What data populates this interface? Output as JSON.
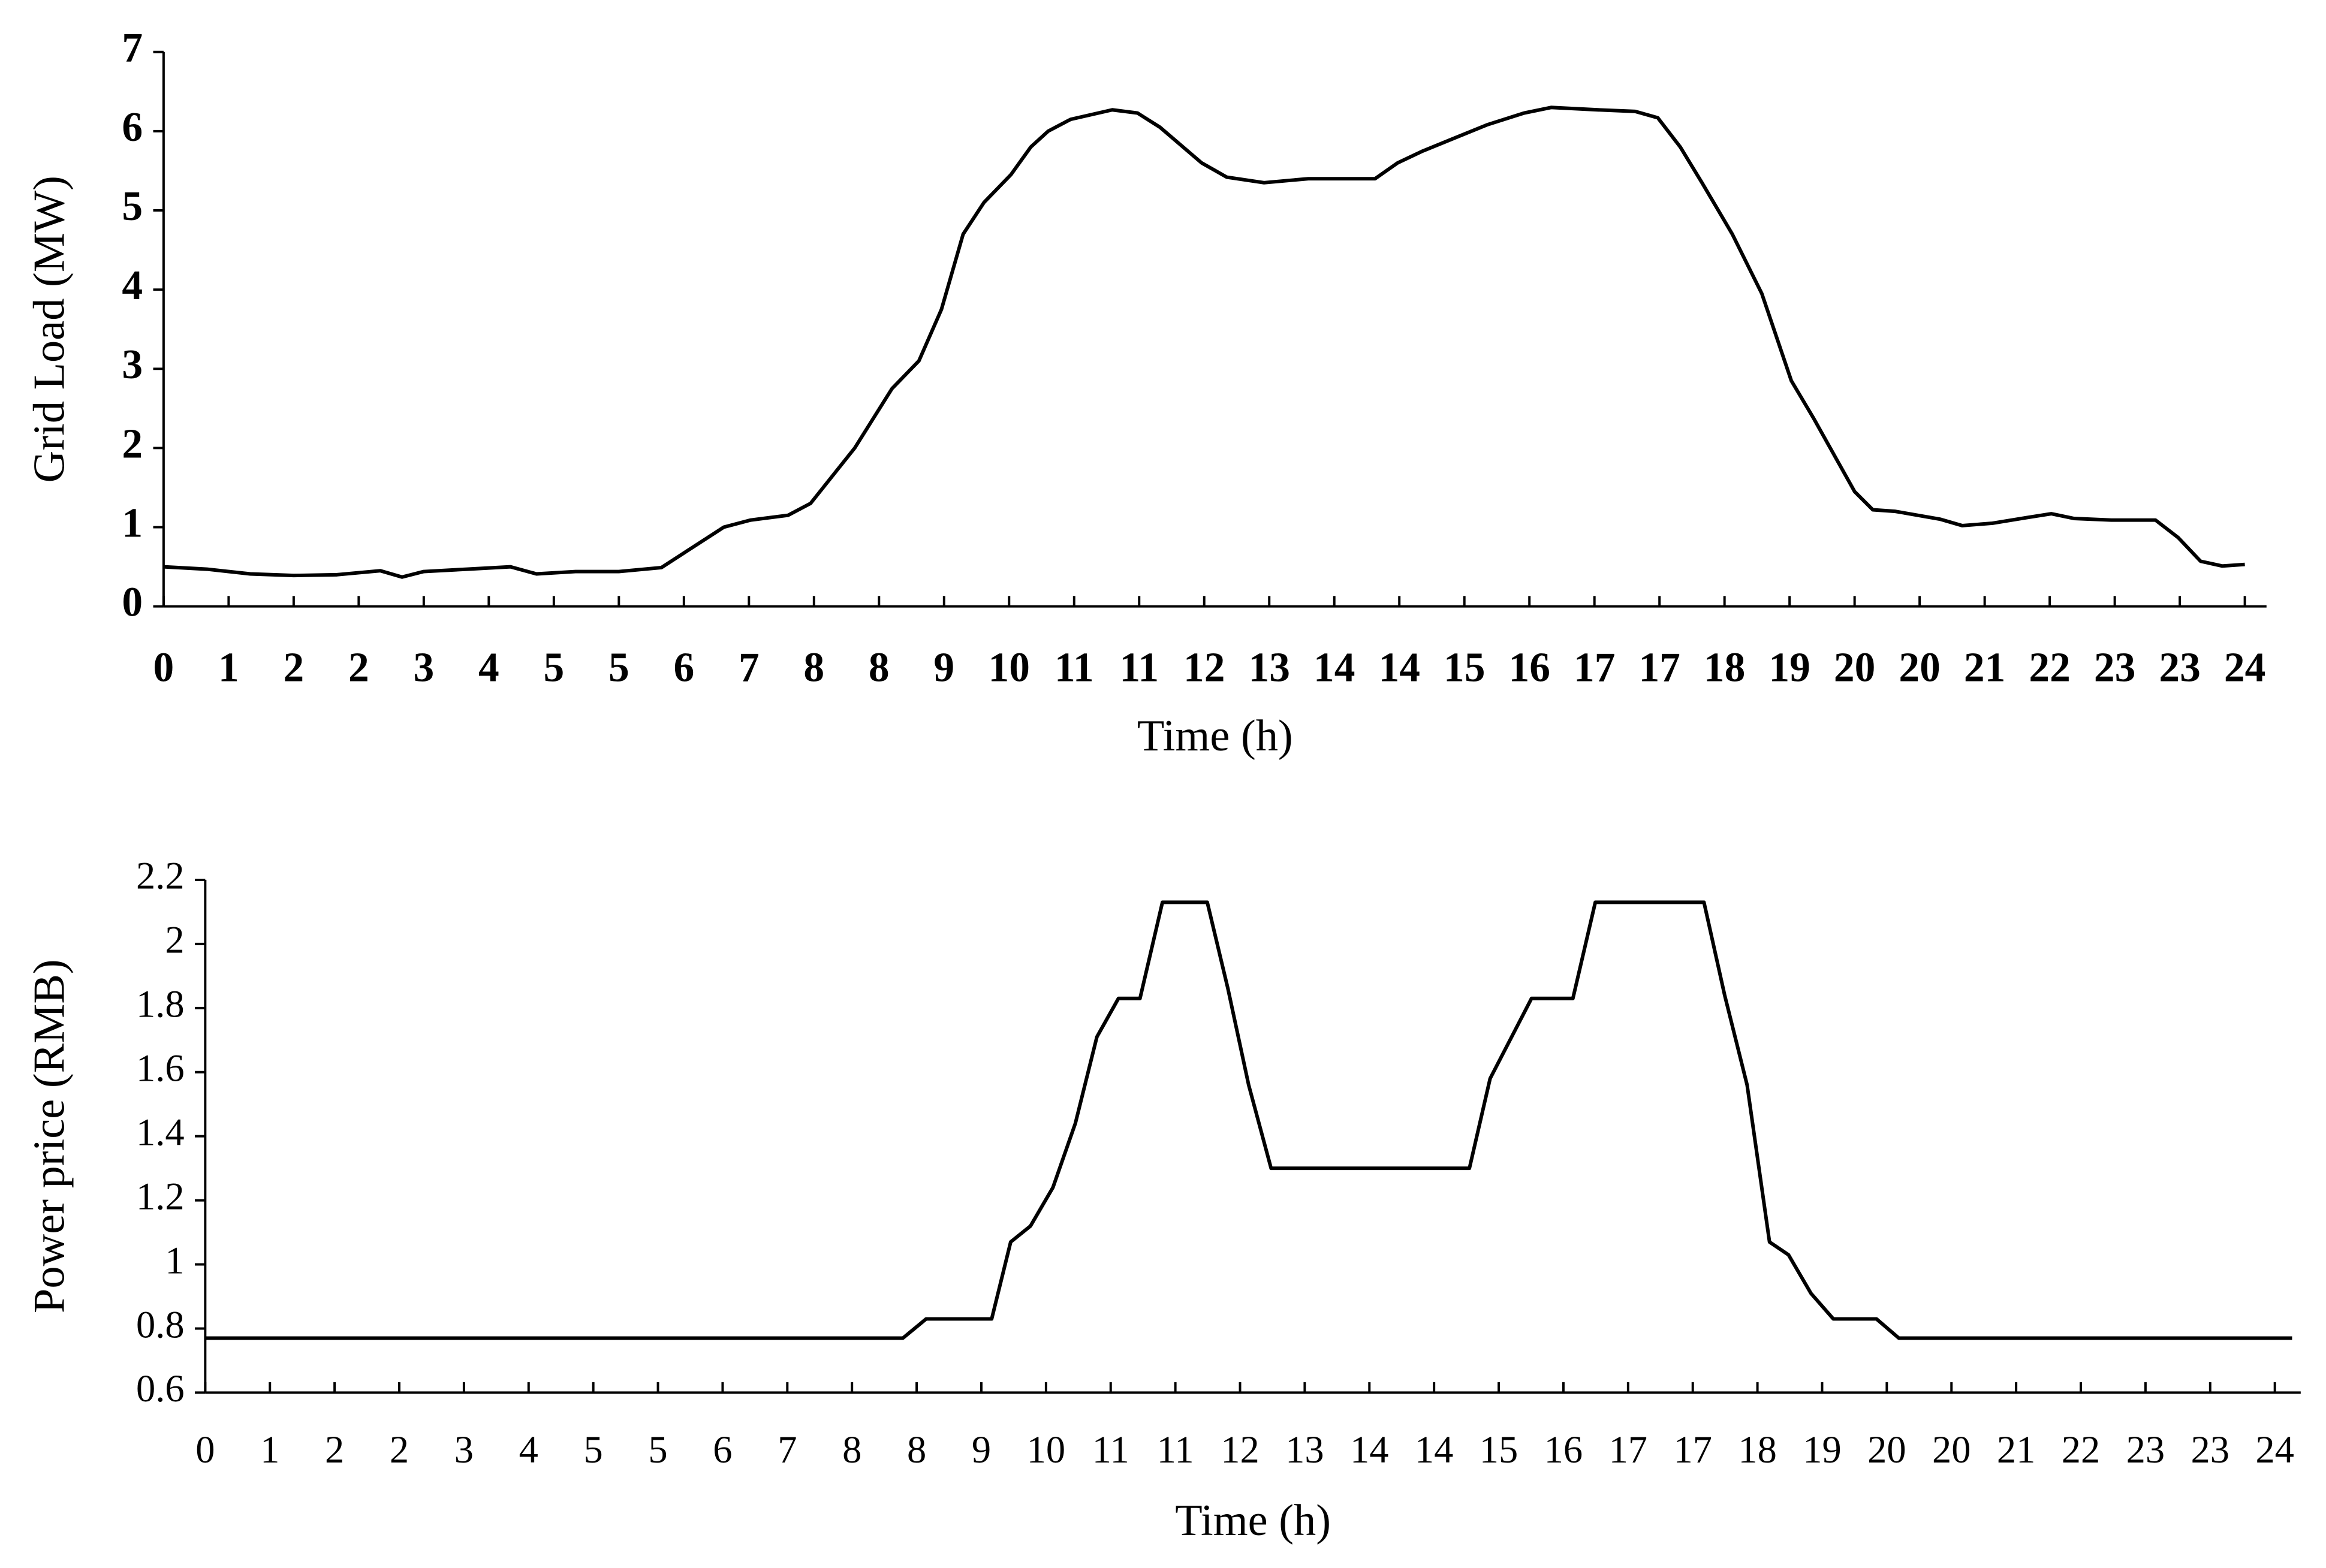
{
  "chart_data": [
    {
      "type": "line",
      "color": "#000000",
      "xlabel": "Time (h)",
      "ylabel": "Grid Load (MW)",
      "x": [
        0,
        0.5,
        1,
        1.5,
        2,
        2.5,
        2.75,
        3,
        3.5,
        4,
        4.3,
        4.75,
        5.25,
        5.74,
        6.46,
        6.77,
        7.2,
        7.46,
        7.97,
        8.4,
        8.71,
        8.97,
        9.22,
        9.46,
        9.77,
        10.0,
        10.2,
        10.46,
        10.94,
        11.23,
        11.49,
        11.97,
        12.26,
        12.69,
        13.2,
        13.97,
        14.23,
        14.52,
        15.26,
        15.69,
        16.0,
        16.54,
        16.97,
        17.23,
        17.49,
        17.74,
        18.09,
        18.43,
        18.77,
        19.03,
        19.5,
        19.71,
        19.97,
        20.49,
        20.74,
        21.09,
        21.48,
        21.77,
        22.03,
        22.46,
        22.97,
        23.23,
        23.49,
        23.74,
        24.0
      ],
      "values": [
        0.5,
        0.47,
        0.41,
        0.39,
        0.4,
        0.45,
        0.37,
        0.44,
        0.47,
        0.5,
        0.41,
        0.44,
        0.44,
        0.49,
        1.0,
        1.09,
        1.15,
        1.3,
        2.0,
        2.75,
        3.1,
        3.75,
        4.7,
        5.1,
        5.45,
        5.8,
        6.0,
        6.15,
        6.27,
        6.23,
        6.05,
        5.6,
        5.42,
        5.35,
        5.4,
        5.4,
        5.6,
        5.75,
        6.08,
        6.23,
        6.3,
        6.27,
        6.25,
        6.17,
        5.8,
        5.35,
        4.7,
        3.95,
        2.85,
        2.37,
        1.45,
        1.22,
        1.2,
        1.1,
        1.02,
        1.05,
        1.12,
        1.17,
        1.11,
        1.09,
        1.09,
        0.87,
        0.57,
        0.51,
        0.53
      ],
      "xlim": [
        0,
        24.25
      ],
      "xticks": [
        0,
        {
          "value": 0.75,
          "label": "1"
        },
        {
          "value": 1.5,
          "label": "2"
        },
        {
          "value": 2.25,
          "label": "2"
        },
        3,
        {
          "value": 3.75,
          "label": "4"
        },
        {
          "value": 4.5,
          "label": "5"
        },
        {
          "value": 5.25,
          "label": "5"
        },
        6,
        {
          "value": 6.75,
          "label": "7"
        },
        {
          "value": 7.5,
          "label": "8"
        },
        {
          "value": 8.25,
          "label": "8"
        },
        9,
        {
          "value": 9.75,
          "label": "10"
        },
        {
          "value": 10.5,
          "label": "11"
        },
        {
          "value": 11.25,
          "label": "11"
        },
        12,
        {
          "value": 12.75,
          "label": "13"
        },
        {
          "value": 13.5,
          "label": "14"
        },
        {
          "value": 14.25,
          "label": "14"
        },
        15,
        {
          "value": 15.75,
          "label": "16"
        },
        {
          "value": 16.5,
          "label": "17"
        },
        {
          "value": 17.25,
          "label": "17"
        },
        18,
        {
          "value": 18.75,
          "label": "19"
        },
        {
          "value": 19.5,
          "label": "20"
        },
        {
          "value": 20.25,
          "label": "20"
        },
        21,
        {
          "value": 21.75,
          "label": "22"
        },
        {
          "value": 22.5,
          "label": "23"
        },
        {
          "value": 23.25,
          "label": "23"
        },
        24
      ],
      "ylim": [
        0,
        7
      ],
      "yticks": [
        0,
        1,
        2,
        3,
        4,
        5,
        6,
        7
      ]
    },
    {
      "type": "line",
      "color": "#000000",
      "xlabel": "Time (h)",
      "ylabel": "Power price (RMB)",
      "x": [
        0,
        8.09,
        8.36,
        9.12,
        9.34,
        9.57,
        9.83,
        10.09,
        10.34,
        10.59,
        10.84,
        11.1,
        11.62,
        11.86,
        12.1,
        12.36,
        14.66,
        14.9,
        15.38,
        15.86,
        16.12,
        17.38,
        17.62,
        17.88,
        18.14,
        18.36,
        18.62,
        18.88,
        19.38,
        19.64,
        24.2
      ],
      "values": [
        0.77,
        0.77,
        0.83,
        0.83,
        1.07,
        1.12,
        1.24,
        1.44,
        1.71,
        1.83,
        1.83,
        2.13,
        2.13,
        1.86,
        1.56,
        1.3,
        1.3,
        1.58,
        1.83,
        1.83,
        2.13,
        2.13,
        1.84,
        1.56,
        1.07,
        1.03,
        0.91,
        0.83,
        0.83,
        0.77,
        0.77
      ],
      "xlim": [
        0,
        24.3
      ],
      "xticks": [
        0,
        {
          "value": 0.75,
          "label": "1"
        },
        {
          "value": 1.5,
          "label": "2"
        },
        {
          "value": 2.25,
          "label": "2"
        },
        3,
        {
          "value": 3.75,
          "label": "4"
        },
        {
          "value": 4.5,
          "label": "5"
        },
        {
          "value": 5.25,
          "label": "5"
        },
        6,
        {
          "value": 6.75,
          "label": "7"
        },
        {
          "value": 7.5,
          "label": "8"
        },
        {
          "value": 8.25,
          "label": "8"
        },
        9,
        {
          "value": 9.75,
          "label": "10"
        },
        {
          "value": 10.5,
          "label": "11"
        },
        {
          "value": 11.25,
          "label": "11"
        },
        12,
        {
          "value": 12.75,
          "label": "13"
        },
        {
          "value": 13.5,
          "label": "14"
        },
        {
          "value": 14.25,
          "label": "14"
        },
        15,
        {
          "value": 15.75,
          "label": "16"
        },
        {
          "value": 16.5,
          "label": "17"
        },
        {
          "value": 17.25,
          "label": "17"
        },
        18,
        {
          "value": 18.75,
          "label": "19"
        },
        {
          "value": 19.5,
          "label": "20"
        },
        {
          "value": 20.25,
          "label": "20"
        },
        21,
        {
          "value": 21.75,
          "label": "22"
        },
        {
          "value": 22.5,
          "label": "23"
        },
        {
          "value": 23.25,
          "label": "23"
        },
        24
      ],
      "ylim": [
        0.6,
        2.2
      ],
      "yticks": [
        0.6,
        0.8,
        1,
        1.2,
        1.4,
        1.6,
        1.8,
        2,
        2.2
      ]
    }
  ]
}
